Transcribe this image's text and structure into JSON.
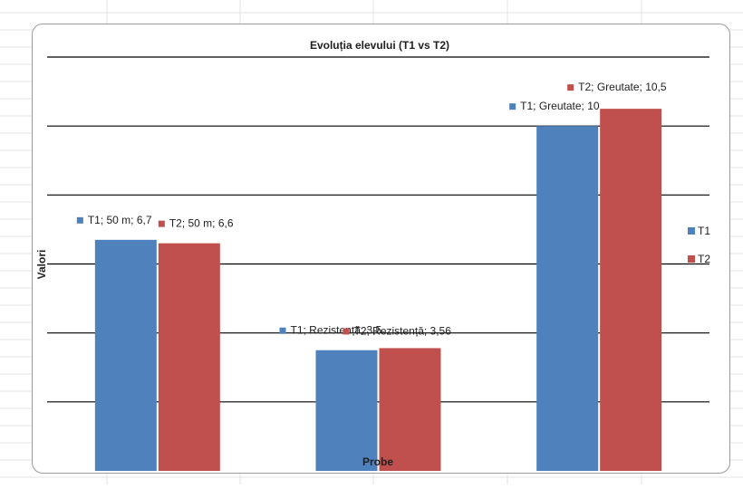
{
  "chart_data": {
    "type": "bar",
    "title": "Evoluția elevului (T1 vs T2)",
    "xlabel": "Probe",
    "ylabel": "Valori",
    "categories": [
      "50 m",
      "Rezistență",
      "Greutate"
    ],
    "series": [
      {
        "name": "T1",
        "color": "#4f81bd",
        "values": [
          6.7,
          3.5,
          10
        ],
        "labels": [
          "T1; 50 m; 6,7",
          "T1; Rezistență; 3,5",
          "T1; Greutate; 10"
        ]
      },
      {
        "name": "T2",
        "color": "#c0504d",
        "values": [
          6.6,
          3.56,
          10.5
        ],
        "labels": [
          "T2; 50 m; 6,6",
          "T2; Rezistență; 3,56",
          "T2; Greutate; 10,5"
        ]
      }
    ],
    "ylim": [
      0,
      12
    ],
    "y_major_step": 2,
    "grid": true,
    "legend_position": "right"
  }
}
